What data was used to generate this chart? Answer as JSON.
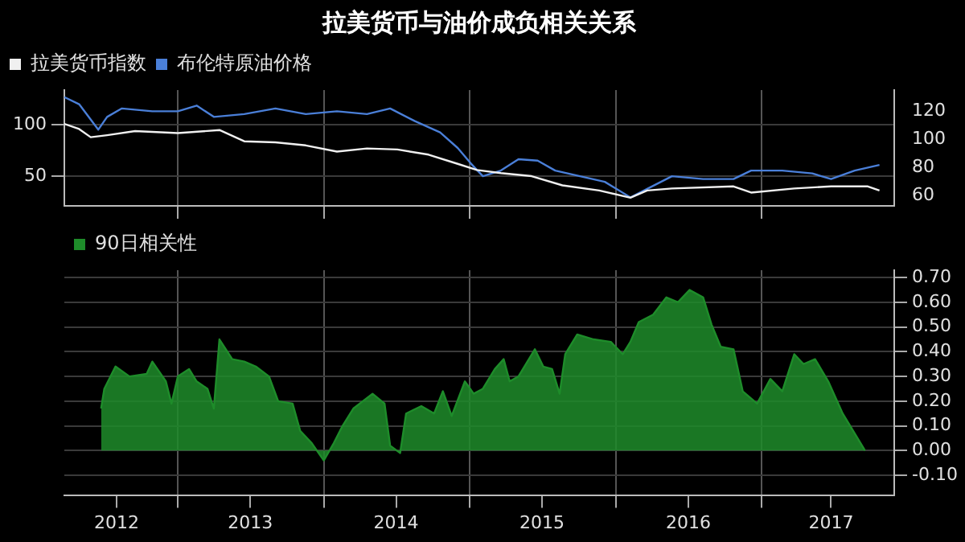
{
  "chart_data": [
    {
      "type": "line",
      "title": "拉美货币与油价成负相关关系",
      "legend": "top left",
      "grid": true,
      "tick_labels": "y",
      "xlim": [
        "2012-03-23",
        "2017-11-28"
      ],
      "xticks": [
        {
          "value": "2013",
          "label": null
        },
        {
          "value": "2014",
          "label": null
        },
        {
          "value": "2015",
          "label": null
        },
        {
          "value": "2016",
          "label": null
        },
        {
          "value": "2017",
          "label": null
        }
      ],
      "ylim": [
        21,
        134
      ],
      "yticks": [
        50,
        100
      ],
      "y2lim": [
        53,
        135
      ],
      "y2ticks": [
        60,
        80,
        100,
        120
      ],
      "series": [
        {
          "name": "拉美货币指数",
          "color": "#f0f0f0",
          "x": [
            "2012-03-23",
            "2012-04-29",
            "2012-05-28",
            "2012-07-08",
            "2012-09-16",
            "2013-01-01",
            "2013-04-15",
            "2013-06-16",
            "2013-09-02",
            "2013-11-17",
            "2014-02-03",
            "2014-04-19",
            "2014-07-04",
            "2014-09-20",
            "2014-12-02",
            "2015-01-19",
            "2015-03-20",
            "2015-06-05",
            "2015-08-21",
            "2015-11-21",
            "2016-02-07",
            "2016-03-20",
            "2016-05-21",
            "2016-10-22",
            "2016-12-05",
            "2017-03-23",
            "2017-06-23",
            "2017-09-23",
            "2017-10-22"
          ],
          "values": [
            101,
            96,
            88,
            90,
            94,
            92,
            95,
            84,
            83,
            80,
            74,
            77,
            76,
            71,
            62,
            56,
            53,
            50,
            41,
            36,
            29,
            36,
            38,
            40,
            34,
            38,
            40,
            40,
            36
          ]
        },
        {
          "name": "布伦特原油价格",
          "color": "#4a7fd8",
          "axis": "y2",
          "x": [
            "2012-03-23",
            "2012-04-29",
            "2012-06-16",
            "2012-07-08",
            "2012-08-14",
            "2012-10-29",
            "2013-01-01",
            "2013-02-17",
            "2013-04-01",
            "2013-06-16",
            "2013-09-02",
            "2013-11-17",
            "2014-02-03",
            "2014-04-19",
            "2014-06-16",
            "2014-08-17",
            "2014-10-19",
            "2014-12-02",
            "2015-01-04",
            "2015-02-03",
            "2015-03-20",
            "2015-05-03",
            "2015-06-20",
            "2015-08-03",
            "2015-10-04",
            "2015-12-05",
            "2016-02-07",
            "2016-03-20",
            "2016-05-21",
            "2016-08-07",
            "2016-10-22",
            "2016-12-05",
            "2017-02-21",
            "2017-05-07",
            "2017-06-23",
            "2017-08-21",
            "2017-10-22"
          ],
          "values": [
            130,
            125,
            107,
            116,
            122,
            120,
            120,
            124,
            116,
            118,
            122,
            118,
            120,
            118,
            122,
            113,
            105,
            94,
            83,
            74,
            78,
            86,
            85,
            78,
            74,
            70,
            59,
            65,
            74,
            72,
            72,
            78,
            78,
            76,
            72,
            78,
            82
          ]
        }
      ]
    },
    {
      "type": "area",
      "legend": "top left",
      "grid": true,
      "xlim": [
        "2012-03-23",
        "2017-11-28"
      ],
      "xticks": [
        {
          "value": "2012-08",
          "label": "2012"
        },
        {
          "value": "2013",
          "label": null
        },
        {
          "value": "2013-07",
          "label": "2013"
        },
        {
          "value": "2014",
          "label": null
        },
        {
          "value": "2014-07",
          "label": "2014"
        },
        {
          "value": "2015",
          "label": null
        },
        {
          "value": "2015-07",
          "label": "2015"
        },
        {
          "value": "2016",
          "label": null
        },
        {
          "value": "2016-07",
          "label": "2016"
        },
        {
          "value": "2017",
          "label": null
        },
        {
          "value": "2017-06-23",
          "label": "2017"
        }
      ],
      "ylim": [
        -0.18,
        0.73
      ],
      "yticks": [
        {
          "value": -0.1,
          "label": "-0.10"
        },
        {
          "value": 0,
          "label": "0.00"
        },
        {
          "value": 0.1,
          "label": "0.10"
        },
        {
          "value": 0.2,
          "label": "0.20"
        },
        {
          "value": 0.3,
          "label": "0.30"
        },
        {
          "value": 0.4,
          "label": "0.40"
        },
        {
          "value": 0.5,
          "label": "0.50"
        },
        {
          "value": 0.6,
          "label": "0.60"
        },
        {
          "value": 0.7,
          "label": "0.70"
        }
      ],
      "series": [
        {
          "name": "90日相关性",
          "color": "#1e8c2a",
          "x": [
            "2012-06-23",
            "2012-07-01",
            "2012-07-29",
            "2012-09-02",
            "2012-10-15",
            "2012-10-29",
            "2012-12-02",
            "2012-12-16",
            "2013-01-01",
            "2013-01-29",
            "2013-02-17",
            "2013-03-16",
            "2013-04-01",
            "2013-04-15",
            "2013-05-17",
            "2013-06-16",
            "2013-07-15",
            "2013-08-17",
            "2013-09-09",
            "2013-10-15",
            "2013-11-03",
            "2013-12-02",
            "2014-01-01",
            "2014-01-26",
            "2014-02-17",
            "2014-03-16",
            "2014-05-03",
            "2014-06-02",
            "2014-06-16",
            "2014-07-11",
            "2014-07-26",
            "2014-09-02",
            "2014-10-04",
            "2014-10-26",
            "2014-11-17",
            "2014-12-20",
            "2015-01-11",
            "2015-02-03",
            "2015-03-05",
            "2015-03-27",
            "2015-04-11",
            "2015-05-03",
            "2015-06-13",
            "2015-07-04",
            "2015-07-26",
            "2015-08-14",
            "2015-08-28",
            "2015-09-27",
            "2015-11-07",
            "2015-12-20",
            "2016-01-19",
            "2016-02-07",
            "2016-02-28",
            "2016-04-04",
            "2016-05-07",
            "2016-06-05",
            "2016-07-04",
            "2016-08-07",
            "2016-08-28",
            "2016-09-20",
            "2016-10-22",
            "2016-11-14",
            "2016-12-20",
            "2017-01-22",
            "2017-02-21",
            "2017-03-23",
            "2017-04-15",
            "2017-05-14",
            "2017-06-16",
            "2017-07-22",
            "2017-08-21",
            "2017-09-16"
          ],
          "values": [
            0.17,
            0.25,
            0.34,
            0.3,
            0.31,
            0.36,
            0.28,
            0.19,
            0.3,
            0.33,
            0.28,
            0.25,
            0.17,
            0.45,
            0.37,
            0.36,
            0.34,
            0.3,
            0.2,
            0.19,
            0.08,
            0.03,
            -0.04,
            0.03,
            0.1,
            0.17,
            0.23,
            0.19,
            0.02,
            -0.01,
            0.15,
            0.18,
            0.15,
            0.24,
            0.14,
            0.28,
            0.23,
            0.25,
            0.33,
            0.37,
            0.28,
            0.3,
            0.41,
            0.34,
            0.33,
            0.23,
            0.39,
            0.47,
            0.45,
            0.44,
            0.39,
            0.44,
            0.52,
            0.55,
            0.62,
            0.6,
            0.65,
            0.62,
            0.51,
            0.42,
            0.41,
            0.24,
            0.19,
            0.29,
            0.24,
            0.39,
            0.35,
            0.37,
            0.28,
            0.15,
            0.07,
            0
          ]
        }
      ]
    }
  ]
}
